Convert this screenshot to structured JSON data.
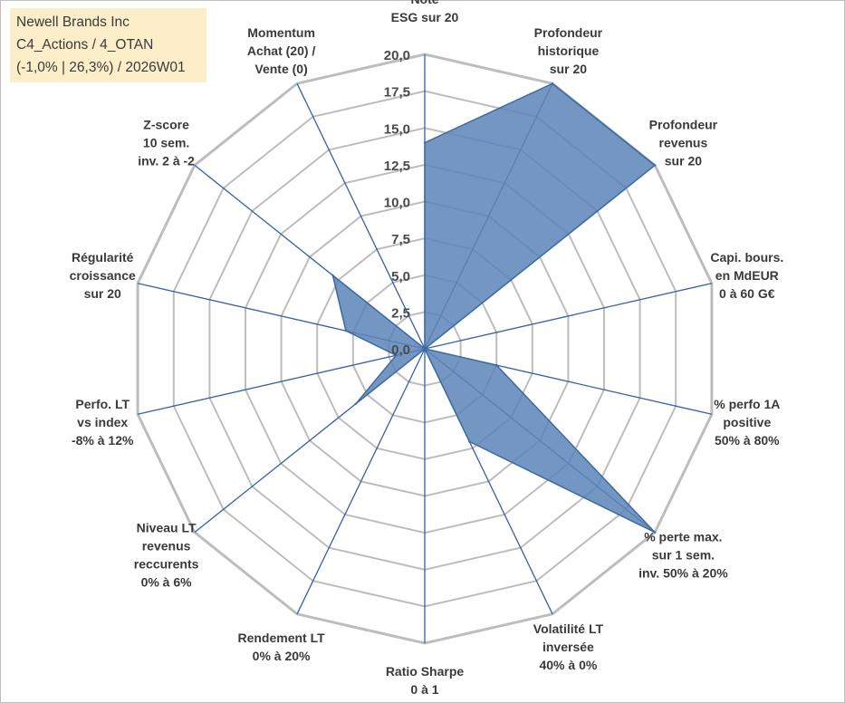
{
  "info": {
    "line1": "Newell Brands Inc",
    "line2": "C4_Actions / 4_OTAN",
    "line3": "(-1,0% | 26,3%) / 2026W01"
  },
  "chart_data": {
    "type": "radar",
    "title": "",
    "rlim": [
      0,
      20
    ],
    "ticks": [
      "0,0",
      "2,5",
      "5,0",
      "7,5",
      "10,0",
      "12,5",
      "15,0",
      "17,5",
      "20,0"
    ],
    "axes": [
      [
        "Note",
        "ESG sur 20"
      ],
      [
        "Profondeur",
        "historique",
        "sur 20"
      ],
      [
        "Profondeur",
        "revenus",
        "sur 20"
      ],
      [
        "Capi. bours.",
        "en MdEUR",
        "0 à 60 G€"
      ],
      [
        "% perfo 1A",
        "positive",
        "50% à 80%"
      ],
      [
        "% perte max.",
        "sur 1 sem.",
        "inv. 50% à 20%"
      ],
      [
        "Volatilité LT",
        "inversée",
        "40% à 0%"
      ],
      [
        "Ratio Sharpe",
        "0 à 1"
      ],
      [
        "Rendement LT",
        "0% à 20%"
      ],
      [
        "Niveau LT",
        "revenus",
        "reccurents",
        "0% à 6%"
      ],
      [
        "Perfo. LT",
        "vs index",
        "-8% à 12%"
      ],
      [
        "Régularité",
        "croissance",
        "sur 20"
      ],
      [
        "Z-score",
        "10 sem.",
        "inv. 2 à -2"
      ],
      [
        "Momentum",
        "Achat (20) /",
        "Vente (0)"
      ]
    ],
    "series": [
      {
        "name": "Newell Brands Inc",
        "values": [
          14,
          20,
          20,
          0,
          5,
          20,
          7,
          0,
          0,
          6,
          2,
          5.5,
          8,
          0
        ]
      }
    ],
    "colors": {
      "fill": "#5b85b7",
      "stroke": "#3f6a9e",
      "spoke": "#3561a8",
      "grid": "#bdbdbd"
    }
  }
}
